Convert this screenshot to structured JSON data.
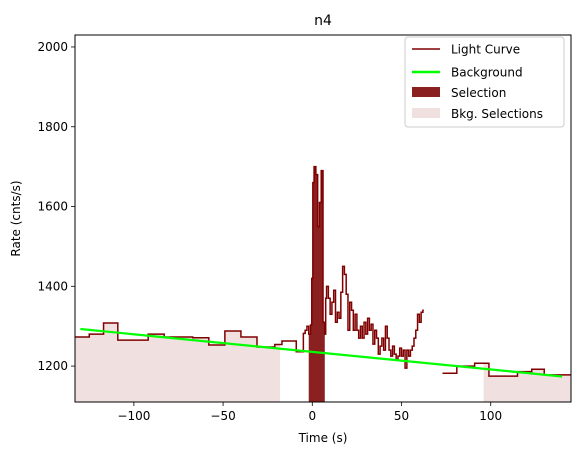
{
  "chart_data": {
    "type": "line",
    "title": "n4",
    "xlabel": "Time (s)",
    "ylabel": "Rate (cnts/s)",
    "xlim": [
      -133,
      145
    ],
    "ylim": [
      1110,
      2030
    ],
    "xticks": [
      -100,
      -50,
      0,
      50,
      100
    ],
    "yticks": [
      1200,
      1400,
      1600,
      1800,
      2000
    ],
    "grid": false,
    "legend_position": "upper right",
    "legend": [
      {
        "label": "Light Curve",
        "kind": "line",
        "color": "#7f0000"
      },
      {
        "label": "Background",
        "kind": "line",
        "color": "#00ff00"
      },
      {
        "label": "Selection",
        "kind": "patch",
        "color": "#8b2020"
      },
      {
        "label": "Bkg. Selections",
        "kind": "patch",
        "color": "#f0e0e0"
      }
    ],
    "colors": {
      "light_curve": "#7f0000",
      "background": "#00ff00",
      "selection": "#8b2020",
      "bkg_selection": "#f0e0e0"
    },
    "bkg_selections": [
      [
        -133,
        -18
      ],
      [
        96,
        145
      ]
    ],
    "selection_range": [
      -2,
      7
    ],
    "background_line": {
      "x": [
        -130,
        140
      ],
      "y": [
        1293,
        1174
      ]
    },
    "light_curve": [
      [
        -133,
        1273
      ],
      [
        -125,
        1280
      ],
      [
        -117,
        1308
      ],
      [
        -109,
        1265
      ],
      [
        -92,
        1280
      ],
      [
        -83,
        1273
      ],
      [
        -67,
        1271
      ],
      [
        -58,
        1253
      ],
      [
        -49,
        1288
      ],
      [
        -40,
        1273
      ],
      [
        -31,
        1248
      ],
      [
        -21,
        1254
      ],
      [
        -17,
        1263
      ],
      [
        -9,
        1236
      ],
      [
        -5,
        1282
      ],
      [
        -4,
        1290
      ],
      [
        -3,
        1300
      ],
      [
        -2,
        1280
      ],
      [
        -1,
        1303
      ],
      [
        -0.3,
        1420
      ],
      [
        0.3,
        1660
      ],
      [
        1,
        1700
      ],
      [
        2,
        1680
      ],
      [
        3,
        1550
      ],
      [
        4,
        1610
      ],
      [
        5,
        1690
      ],
      [
        6,
        1310
      ],
      [
        7,
        1280
      ],
      [
        7.5,
        1370
      ],
      [
        8,
        1400
      ],
      [
        9,
        1370
      ],
      [
        10,
        1330
      ],
      [
        11,
        1360
      ],
      [
        12,
        1390
      ],
      [
        13,
        1310
      ],
      [
        14,
        1335
      ],
      [
        15,
        1320
      ],
      [
        16,
        1385
      ],
      [
        17,
        1450
      ],
      [
        18,
        1430
      ],
      [
        19,
        1380
      ],
      [
        20,
        1290
      ],
      [
        21,
        1360
      ],
      [
        22,
        1340
      ],
      [
        23,
        1290
      ],
      [
        24,
        1330
      ],
      [
        25,
        1290
      ],
      [
        26,
        1270
      ],
      [
        27,
        1300
      ],
      [
        28,
        1270
      ],
      [
        29,
        1310
      ],
      [
        30,
        1280
      ],
      [
        31,
        1320
      ],
      [
        32,
        1290
      ],
      [
        33,
        1305
      ],
      [
        34,
        1255
      ],
      [
        35,
        1290
      ],
      [
        36,
        1270
      ],
      [
        37,
        1230
      ],
      [
        38,
        1250
      ],
      [
        39,
        1270
      ],
      [
        40,
        1240
      ],
      [
        41,
        1300
      ],
      [
        42,
        1270
      ],
      [
        43,
        1240
      ],
      [
        44,
        1225
      ],
      [
        45,
        1250
      ],
      [
        46,
        1230
      ],
      [
        47,
        1215
      ],
      [
        48,
        1225
      ],
      [
        49,
        1245
      ],
      [
        50,
        1225
      ],
      [
        51,
        1240
      ],
      [
        52,
        1195
      ],
      [
        53,
        1240
      ],
      [
        54,
        1225
      ],
      [
        55,
        1240
      ],
      [
        56,
        1250
      ],
      [
        57,
        1270
      ],
      [
        58,
        1290
      ],
      [
        59,
        1330
      ],
      [
        60,
        1310
      ],
      [
        61,
        1335
      ],
      [
        62,
        1340
      ],
      [
        62.5,
        null
      ],
      [
        73,
        1182
      ],
      [
        81,
        1200
      ],
      [
        91,
        1207
      ],
      [
        99,
        1175
      ],
      [
        115,
        1186
      ],
      [
        123,
        1192
      ],
      [
        130,
        1178
      ],
      [
        137,
        1178
      ],
      [
        145,
        null
      ]
    ]
  }
}
